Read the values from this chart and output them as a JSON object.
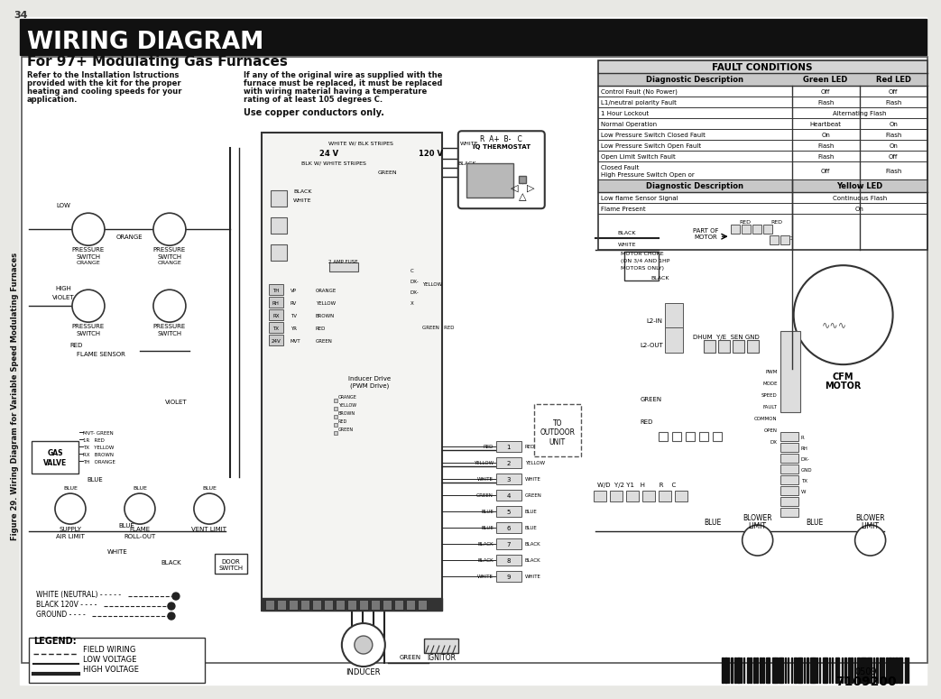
{
  "title": "WIRING DIAGRAM",
  "subtitle": "For 97+ Modulating Gas Furnaces",
  "page_num": "34",
  "bg_color": "#e8e8e4",
  "title_bg": "#111111",
  "title_color": "#ffffff",
  "body_text_left": [
    "Refer to the Installation Istructions",
    "provided with the kit for the proper",
    "heating and cooling speeds for your",
    "application."
  ],
  "body_text_right": [
    "If any of the original wire as supplied with the",
    "furnace must be replaced, it must be replaced",
    "with wiring material having a temperature",
    "rating of at least 105 degrees C."
  ],
  "copper_text": "Use copper conductors only.",
  "fault_table": {
    "header": "FAULT CONDITIONS",
    "col1": "Diagnostic Description",
    "col2": "Green LED",
    "col3": "Red LED",
    "rows": [
      [
        "Control Fault (No Power)",
        "Off",
        "Off"
      ],
      [
        "L1/neutral polarity Fault",
        "Flash",
        "Flash"
      ],
      [
        "1 Hour Lockout",
        "Alternating Flash",
        ""
      ],
      [
        "Normal Operation",
        "Heartbeat",
        "On"
      ],
      [
        "Low Pressure Switch Closed Fault",
        "On",
        "Flash"
      ],
      [
        "Low Pressure Switch Open Fault",
        "Flash",
        "On"
      ],
      [
        "Open Limit Switch Fault",
        "Flash",
        "Off"
      ],
      [
        "High Pressure Switch Open or\nClosed Fault",
        "Off",
        "Flash"
      ]
    ],
    "rows2_header": [
      "Diagnostic Description",
      "Yellow LED"
    ],
    "rows2": [
      [
        "Low flame Sensor Signal",
        "Continuous Flash"
      ],
      [
        "Flame Present",
        "On"
      ]
    ]
  },
  "side_label": "Figure 29. Wiring Diagram for Variable Speed Modulating Furnaces",
  "part_number": "7109200",
  "part_number2": "0509"
}
